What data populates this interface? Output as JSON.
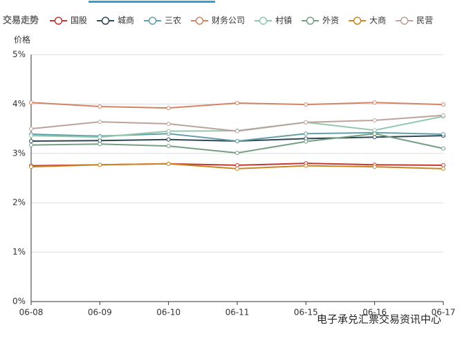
{
  "chart_data": {
    "type": "line",
    "title": "交易走势",
    "y_label": "价格",
    "categories": [
      "06-08",
      "06-09",
      "06-10",
      "06-11",
      "06-15",
      "06-16",
      "06-17"
    ],
    "series": [
      {
        "name": "国股",
        "color": "#c23531",
        "values": [
          2.75,
          2.77,
          2.79,
          2.76,
          2.8,
          2.77,
          2.76
        ]
      },
      {
        "name": "城商",
        "color": "#2f4554",
        "values": [
          3.25,
          3.26,
          3.28,
          3.25,
          3.3,
          3.33,
          3.36
        ]
      },
      {
        "name": "三农",
        "color": "#61a0a8",
        "values": [
          3.39,
          3.35,
          3.4,
          3.25,
          3.4,
          3.42,
          3.39
        ]
      },
      {
        "name": "财务公司",
        "color": "#d48265",
        "values": [
          4.03,
          3.95,
          3.92,
          4.02,
          3.99,
          4.03,
          3.99
        ]
      },
      {
        "name": "村镇",
        "color": "#91c7ae",
        "values": [
          3.36,
          3.33,
          3.45,
          3.46,
          3.63,
          3.47,
          3.75
        ]
      },
      {
        "name": "外资",
        "color": "#749f83",
        "values": [
          3.17,
          3.19,
          3.15,
          3.01,
          3.24,
          3.4,
          3.1
        ]
      },
      {
        "name": "大商",
        "color": "#ca8622",
        "values": [
          2.73,
          2.77,
          2.79,
          2.69,
          2.75,
          2.73,
          2.69
        ]
      },
      {
        "name": "民营",
        "color": "#bda29a",
        "values": [
          3.5,
          3.64,
          3.6,
          3.45,
          3.63,
          3.67,
          3.77
        ]
      }
    ],
    "ylim": [
      0,
      5
    ],
    "yticks": [
      {
        "value": 0,
        "label": "0%"
      },
      {
        "value": 1,
        "label": "1%"
      },
      {
        "value": 2,
        "label": "2%"
      },
      {
        "value": 3,
        "label": "3%"
      },
      {
        "value": 4,
        "label": "4%"
      },
      {
        "value": 5,
        "label": "5%"
      }
    ],
    "grid": true,
    "watermark": "电子承兑汇票交易资讯中心"
  }
}
